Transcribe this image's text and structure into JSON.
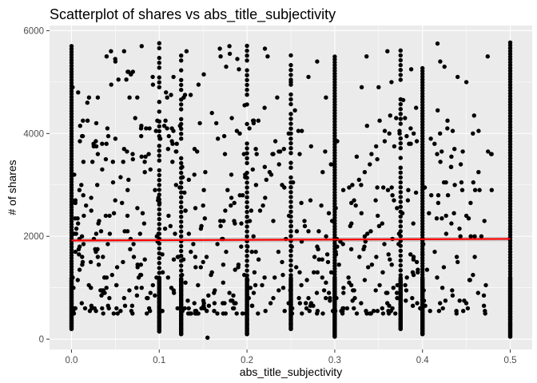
{
  "chart_data": {
    "type": "scatter",
    "title": "Scatterplot of shares vs abs_title_subjectivity",
    "xlabel": "abs_title_subjectivity",
    "ylabel": "# of shares",
    "xlim": [
      -0.025,
      0.525
    ],
    "ylim": [
      -200,
      6100
    ],
    "x_ticks": [
      0.0,
      0.1,
      0.2,
      0.3,
      0.4,
      0.5
    ],
    "x_tick_labels": [
      "0.0",
      "0.1",
      "0.2",
      "0.3",
      "0.4",
      "0.5"
    ],
    "y_ticks": [
      0,
      2000,
      4000,
      6000
    ],
    "y_tick_labels": [
      "0",
      "2000",
      "4000",
      "6000"
    ],
    "grid": true,
    "legend": "none",
    "colors": {
      "panel_background": "#ebebeb",
      "points": "#000000",
      "trend_line": "#ff0000",
      "confidence_band": "#999999"
    },
    "trend_line": {
      "method": "linear",
      "x": [
        0.0,
        0.5
      ],
      "y": [
        1920,
        1950
      ],
      "band_halfwidth": 45
    },
    "columns": [
      {
        "x": 0.0,
        "ymin": 200,
        "ymax": 5700,
        "density": "high"
      },
      {
        "x": 0.1,
        "ymin": 150,
        "ymax": 5800,
        "density": "medium"
      },
      {
        "x": 0.125,
        "ymin": 100,
        "ymax": 5600,
        "density": "medium"
      },
      {
        "x": 0.2,
        "ymin": 100,
        "ymax": 5750,
        "density": "medium"
      },
      {
        "x": 0.25,
        "ymin": 200,
        "ymax": 5800,
        "density": "medium"
      },
      {
        "x": 0.3,
        "ymin": 50,
        "ymax": 5500,
        "density": "high"
      },
      {
        "x": 0.375,
        "ymin": 200,
        "ymax": 5700,
        "density": "medium"
      },
      {
        "x": 0.4,
        "ymin": 100,
        "ymax": 5300,
        "density": "high"
      },
      {
        "x": 0.5,
        "ymin": 50,
        "ymax": 5800,
        "density": "high"
      }
    ],
    "scattered_points": [
      [
        0.02,
        4700
      ],
      [
        0.03,
        4700
      ],
      [
        0.04,
        5500
      ],
      [
        0.045,
        5600
      ],
      [
        0.05,
        5400
      ],
      [
        0.06,
        5600
      ],
      [
        0.065,
        5200
      ],
      [
        0.07,
        5200
      ],
      [
        0.075,
        4700
      ],
      [
        0.08,
        5700
      ],
      [
        0.085,
        4100
      ],
      [
        0.03,
        3600
      ],
      [
        0.035,
        3300
      ],
      [
        0.05,
        3900
      ],
      [
        0.06,
        3700
      ],
      [
        0.065,
        3100
      ],
      [
        0.07,
        3500
      ],
      [
        0.09,
        3300
      ],
      [
        0.11,
        3700
      ],
      [
        0.12,
        3800
      ],
      [
        0.14,
        3200
      ],
      [
        0.16,
        4400
      ],
      [
        0.165,
        4200
      ],
      [
        0.17,
        5500
      ],
      [
        0.18,
        5700
      ],
      [
        0.21,
        3700
      ],
      [
        0.22,
        4500
      ],
      [
        0.23,
        3600
      ],
      [
        0.24,
        3000
      ],
      [
        0.26,
        3600
      ],
      [
        0.27,
        5100
      ],
      [
        0.28,
        5400
      ],
      [
        0.29,
        4700
      ],
      [
        0.32,
        3000
      ],
      [
        0.33,
        3000
      ],
      [
        0.34,
        3400
      ],
      [
        0.35,
        4900
      ],
      [
        0.36,
        5600
      ],
      [
        0.37,
        4300
      ],
      [
        0.38,
        4300
      ],
      [
        0.39,
        4000
      ],
      [
        0.41,
        2800
      ],
      [
        0.42,
        4000
      ],
      [
        0.425,
        5300
      ],
      [
        0.44,
        5100
      ],
      [
        0.45,
        5000
      ],
      [
        0.46,
        2900
      ],
      [
        0.465,
        2900
      ],
      [
        0.47,
        650
      ],
      [
        0.155,
        30
      ],
      [
        0.13,
        2500
      ],
      [
        0.15,
        2600
      ],
      [
        0.17,
        2200
      ],
      [
        0.23,
        2300
      ],
      [
        0.27,
        2100
      ],
      [
        0.31,
        1000
      ],
      [
        0.33,
        700
      ],
      [
        0.34,
        500
      ],
      [
        0.36,
        900
      ],
      [
        0.42,
        700
      ],
      [
        0.44,
        1500
      ],
      [
        0.45,
        2400
      ],
      [
        0.455,
        2000
      ],
      [
        0.03,
        1600
      ],
      [
        0.04,
        1200
      ],
      [
        0.06,
        800
      ],
      [
        0.08,
        1000
      ],
      [
        0.09,
        900
      ],
      [
        0.11,
        1200
      ],
      [
        0.14,
        700
      ],
      [
        0.15,
        1500
      ],
      [
        0.16,
        1300
      ],
      [
        0.18,
        900
      ],
      [
        0.19,
        1400
      ],
      [
        0.21,
        1700
      ],
      [
        0.22,
        1200
      ],
      [
        0.23,
        800
      ],
      [
        0.24,
        1500
      ],
      [
        0.26,
        1300
      ],
      [
        0.27,
        800
      ],
      [
        0.28,
        1800
      ],
      [
        0.29,
        1100
      ]
    ]
  }
}
